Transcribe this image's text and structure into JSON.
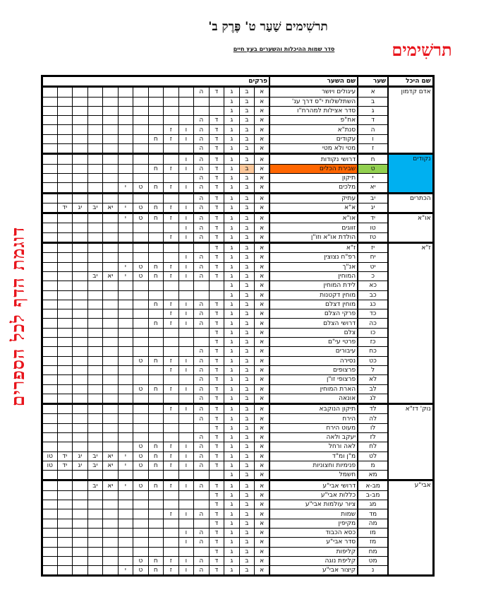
{
  "header": {
    "title": "תרשִׁימים שַׁעַר ט' פֶּרֶק ב'",
    "subtitle": "סדר שמות ההיכלות והשערים בעץ חיים",
    "logo": "תרשִׁימים",
    "side_text": "דוגמת הדף לכל הספרים"
  },
  "colors": {
    "logo": "#e8141b",
    "nekudim_bg": "#00b0f0",
    "highlight_name": "#ff6600",
    "highlight_num": "#92d050",
    "highlight_chapter": "#fcc89b"
  },
  "table": {
    "headers": {
      "heichal": "שם היכל",
      "gate": "שער",
      "gate_name": "שם השער",
      "chapters": "פרקים"
    },
    "chapter_labels": [
      "א",
      "ב",
      "ג",
      "ד",
      "ה",
      "ו",
      "ז",
      "ח",
      "ט",
      "י",
      "יא",
      "יב",
      "יג",
      "יד",
      "טו"
    ],
    "groups": [
      {
        "heichal": "אדם קדמון",
        "rows": [
          {
            "num": "א",
            "name": "עיגולים ויושר",
            "chapters": 5
          },
          {
            "num": "ב",
            "name": "השתלשלות י\"ס דרך ענ'",
            "chapters": 3
          },
          {
            "num": "ג",
            "name": "סדר אצילות למהרח\"ו",
            "chapters": 3
          },
          {
            "num": "ד",
            "name": "אח\"פ",
            "chapters": 5
          },
          {
            "num": "ה",
            "name": "סנת\"א",
            "chapters": 7
          },
          {
            "num": "ו",
            "name": "עקודים",
            "chapters": 8
          },
          {
            "num": "ז",
            "name": "מטי ולא מטי",
            "chapters": 5
          }
        ]
      },
      {
        "heichal": "נקודים",
        "highlight": true,
        "rows": [
          {
            "num": "ח",
            "name": "דרושי נקודות",
            "chapters": 6
          },
          {
            "num": "ט",
            "name": "שבירת הכלים",
            "chapters": 8,
            "highlight": true,
            "highlight_chapter": 2
          },
          {
            "num": "י",
            "name": "תיקון",
            "chapters": 5
          },
          {
            "num": "יא",
            "name": "מלכים",
            "chapters": 10
          }
        ]
      },
      {
        "heichal": "הכתרים",
        "rows": [
          {
            "num": "יב",
            "name": "עתיק",
            "chapters": 5
          },
          {
            "num": "יג",
            "name": "א\"א",
            "chapters": 14
          }
        ]
      },
      {
        "heichal": "או\"א",
        "rows": [
          {
            "num": "יד",
            "name": "או\"א",
            "chapters": 10
          },
          {
            "num": "טו",
            "name": "זווגים",
            "chapters": 6
          },
          {
            "num": "טז",
            "name": "הולדת או\"א וזו\"ן",
            "chapters": 7
          }
        ]
      },
      {
        "heichal": "ז\"א",
        "rows": [
          {
            "num": "יז",
            "name": "ז\"א",
            "chapters": 4
          },
          {
            "num": "יח",
            "name": "רפ\"ח נצוצין",
            "chapters": 6
          },
          {
            "num": "יט",
            "name": "אנ\"ך",
            "chapters": 10
          },
          {
            "num": "כ",
            "name": "המוחין",
            "chapters": 12
          },
          {
            "num": "כא",
            "name": "לידת המוחין",
            "chapters": 3
          },
          {
            "num": "כב",
            "name": "מוחין דקטנות",
            "chapters": 3
          },
          {
            "num": "כג",
            "name": "מוחין דצלם",
            "chapters": 8
          },
          {
            "num": "כד",
            "name": "פרקי הצלם",
            "chapters": 7
          },
          {
            "num": "כה",
            "name": "דרושי הצלם",
            "chapters": 8
          },
          {
            "num": "כו",
            "name": "צלם",
            "chapters": 4
          },
          {
            "num": "כז",
            "name": "פרטי עי\"ם",
            "chapters": 4
          },
          {
            "num": "כח",
            "name": "עיבורים",
            "chapters": 5
          },
          {
            "num": "כט",
            "name": "נסירה",
            "chapters": 9
          },
          {
            "num": "ל",
            "name": "פרצופים",
            "chapters": 7
          },
          {
            "num": "לא",
            "name": "פרצופי זו\"ן",
            "chapters": 5
          },
          {
            "num": "לב",
            "name": "הארת המוחין",
            "chapters": 9
          },
          {
            "num": "לג",
            "name": "אונאה",
            "chapters": 5
          }
        ]
      },
      {
        "heichal": "נוק' דז\"א",
        "rows": [
          {
            "num": "לד",
            "name": "תיקון הנוקבא",
            "chapters": 7
          },
          {
            "num": "לה",
            "name": "הירח",
            "chapters": 5
          },
          {
            "num": "לו",
            "name": "מעוט הירח",
            "chapters": 4
          },
          {
            "num": "לז",
            "name": "יעקב ולאה",
            "chapters": 5
          },
          {
            "num": "לח",
            "name": "לאה ורחל",
            "chapters": 9
          },
          {
            "num": "לט",
            "name": "מ\"ן ומ\"ד",
            "chapters": 15
          },
          {
            "num": "מ",
            "name": "פנימיות וחצוניות",
            "chapters": 15
          },
          {
            "num": "מא",
            "name": "חשמל",
            "chapters": 3
          }
        ]
      },
      {
        "heichal": "אבי\"ע",
        "rows": [
          {
            "num": "מב-א",
            "name": "דרושי אבי\"ע",
            "chapters": 12
          },
          {
            "num": "מב-ב",
            "name": "כללות אבי\"ע",
            "chapters": 4
          },
          {
            "num": "מג",
            "name": "ציור עולמות אבי\"ע",
            "chapters": 4
          },
          {
            "num": "מד",
            "name": "שמות",
            "chapters": 7
          },
          {
            "num": "מה",
            "name": "מקיפין",
            "chapters": 4
          },
          {
            "num": "מו",
            "name": "כסא הכבוד",
            "chapters": 6
          },
          {
            "num": "מז",
            "name": "סדר אבי\"ע",
            "chapters": 6
          },
          {
            "num": "מח",
            "name": "קליפות",
            "chapters": 4
          },
          {
            "num": "מט",
            "name": "קליפת נוגה",
            "chapters": 9
          },
          {
            "num": "נ",
            "name": "קיצור אבי\"ע",
            "chapters": 10
          }
        ]
      }
    ]
  }
}
